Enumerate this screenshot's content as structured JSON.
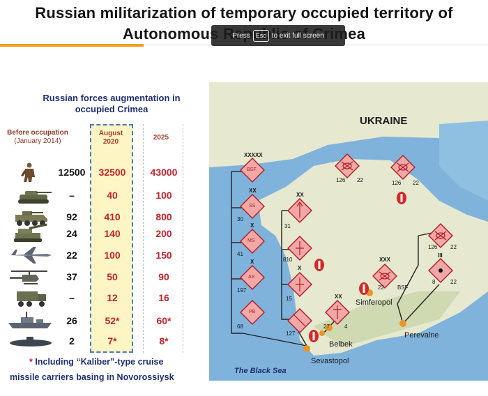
{
  "title": {
    "line1": "Russian militarization of temporary occupied territory of",
    "line2": "Autonomous Republic of Crimea"
  },
  "fullscreen_tip": {
    "press": "Press",
    "key": "Esc",
    "rest": "to exit full screen"
  },
  "forces": {
    "heading_line1": "Russian forces augmentation in",
    "heading_line2": "occupied Crimea",
    "col_before": "Before occupation",
    "col_before_sub": "(January 2014)",
    "col_aug": "August 2020",
    "col_2025": "2025",
    "rows": [
      {
        "icon": "soldier-icon",
        "before": "12500",
        "aug": "32500",
        "y2025": "43000"
      },
      {
        "icon": "tank-icon",
        "before": "–",
        "aug": "40",
        "y2025": "100"
      },
      {
        "icon": "apc-icon",
        "before": "92",
        "aug": "410",
        "y2025": "800"
      },
      {
        "icon": "artillery-icon",
        "before": "24",
        "aug": "140",
        "y2025": "200"
      },
      {
        "icon": "fighter-jet-icon",
        "before": "22",
        "aug": "100",
        "y2025": "150"
      },
      {
        "icon": "helicopter-icon",
        "before": "37",
        "aug": "50",
        "y2025": "90"
      },
      {
        "icon": "missile-launcher-icon",
        "before": "–",
        "aug": "12",
        "y2025": "16"
      },
      {
        "icon": "warship-icon",
        "before": "26",
        "aug": "52*",
        "y2025": "60*"
      },
      {
        "icon": "submarine-icon",
        "before": "2",
        "aug": "7*",
        "y2025": "8*"
      }
    ]
  },
  "footnote": {
    "star": "*",
    "line1": "Including “Kaliber”-type cruise",
    "line2": "missile carriers basing in Novorossiysk"
  },
  "map": {
    "country_label": "UKRAINE",
    "sea_label": "The Black Sea",
    "cities": [
      "Simferopol",
      "Belbek",
      "Sevastopol",
      "Perevalne"
    ],
    "unit_labels": [
      "126",
      "22",
      "126",
      "22",
      "30",
      "31",
      "41",
      "810",
      "197",
      "15",
      "68",
      "127",
      "27",
      "4",
      "22",
      "BSF",
      "126",
      "22",
      "8",
      "22",
      "BSF",
      "SS",
      "MS",
      "AS",
      "PB"
    ],
    "echelon_marks": [
      "XXXXX",
      "XX",
      "X",
      "X",
      "X",
      "XX",
      "XX",
      "XXX",
      "III"
    ],
    "colors": {
      "sea": "#7fb3dc",
      "land": "#e6e8cf",
      "unit_fill": "#f2a8a6",
      "unit_stroke": "#b01c24",
      "line": "#222222",
      "city": "#e8952a"
    }
  }
}
